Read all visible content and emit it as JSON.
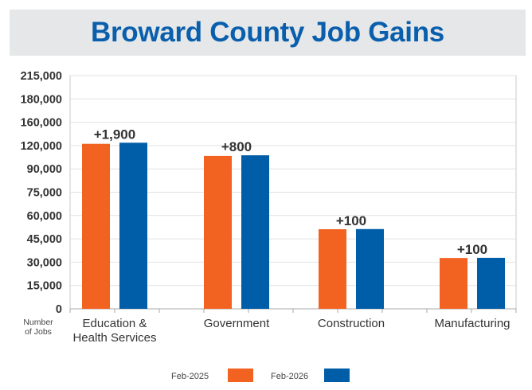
{
  "chart_data": {
    "type": "bar",
    "title": "Broward County Job Gains",
    "ylabel": "Number of Jobs",
    "xlabel": "",
    "y_ticks": [
      "0",
      "15,000",
      "30,000",
      "45,000",
      "60,000",
      "75,000",
      "90,000",
      "120,000",
      "160,000",
      "180,000",
      "215,000"
    ],
    "y_tick_values": [
      0,
      15000,
      30000,
      45000,
      60000,
      75000,
      90000,
      120000,
      160000,
      180000,
      215000
    ],
    "ylim": [
      0,
      215000
    ],
    "grid": true,
    "categories": [
      [
        "Education &",
        "Health Services"
      ],
      [
        "Government"
      ],
      [
        "Construction"
      ],
      [
        "Manufacturing"
      ]
    ],
    "series": [
      {
        "name": "Feb-2025",
        "color": "#f26322",
        "values": [
          123000,
          106700,
          51200,
          32700
        ]
      },
      {
        "name": "Feb-2026",
        "color": "#005ea8",
        "values": [
          124900,
          107500,
          51300,
          32800
        ]
      }
    ],
    "data_labels": [
      "+1,900",
      "+800",
      "+100",
      "+100"
    ],
    "legend_position": "bottom"
  }
}
